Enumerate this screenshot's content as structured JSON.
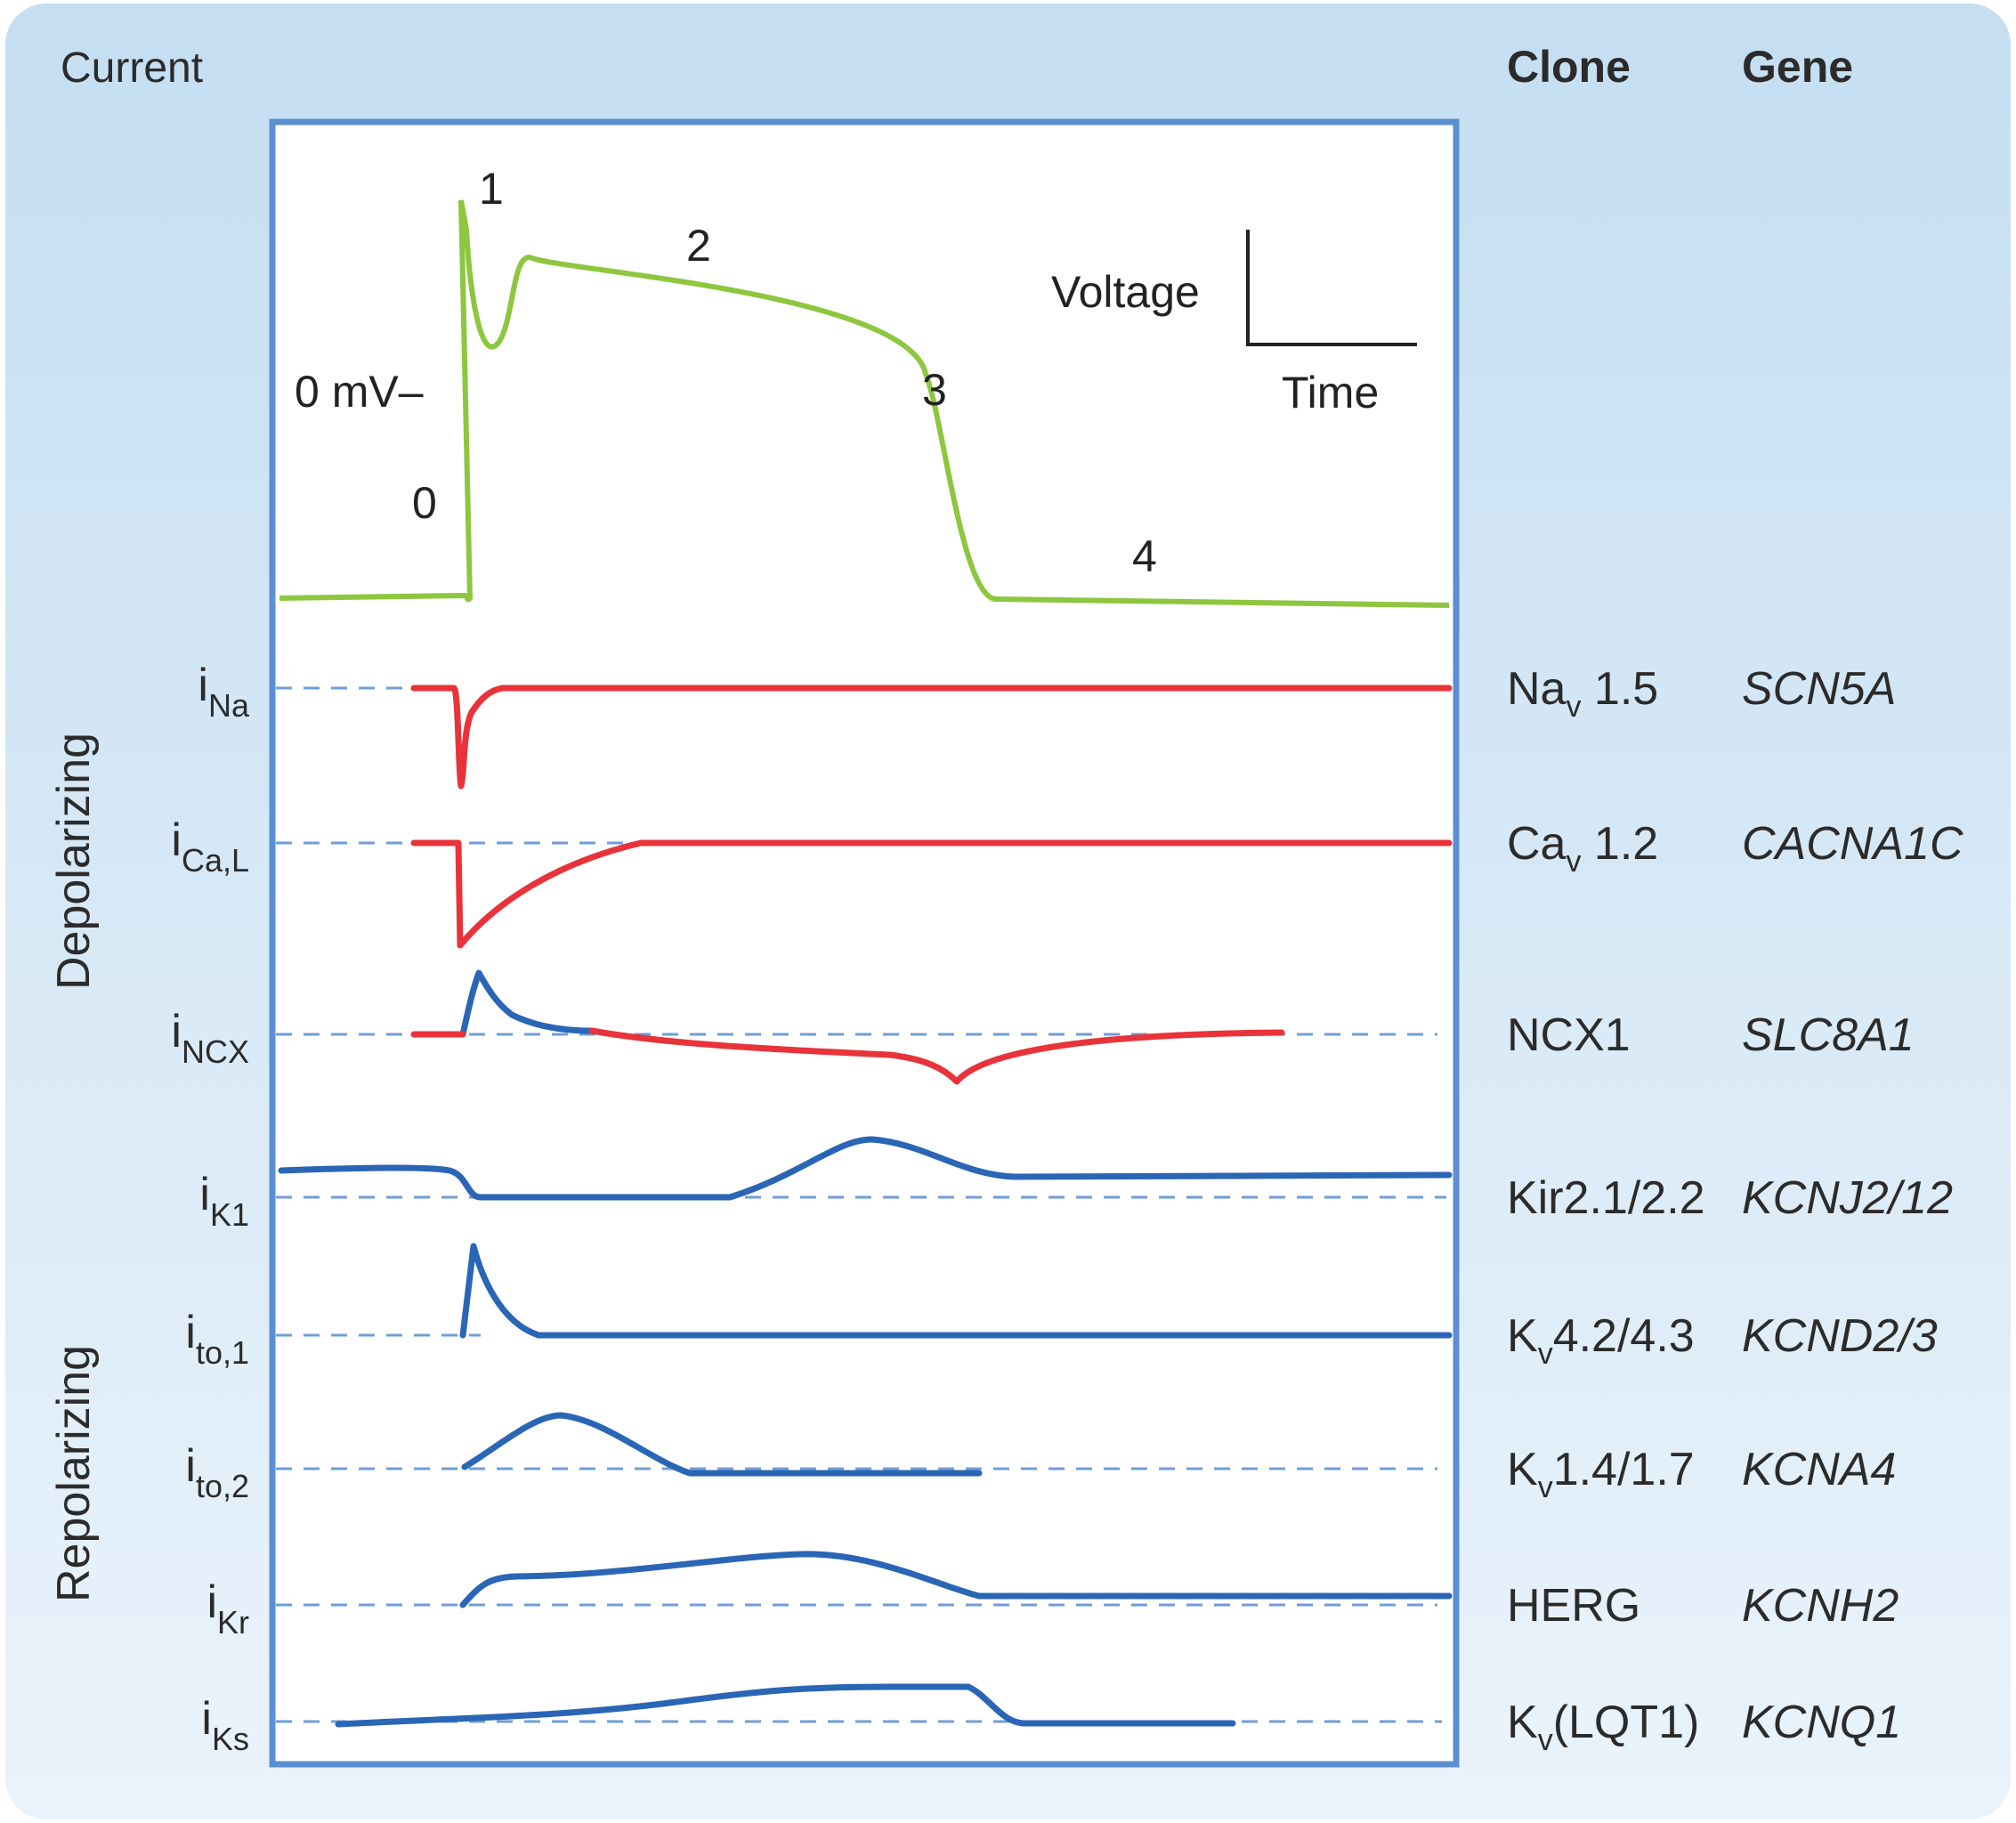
{
  "header": {
    "current": "Current",
    "clone": "Clone",
    "gene": "Gene"
  },
  "sides": {
    "depolarizing": "Depolarizing",
    "repolarizing": "Repolarizing"
  },
  "action_potential": {
    "zero_mv": "0 mV–",
    "phases": [
      "0",
      "1",
      "2",
      "3",
      "4"
    ],
    "scale_voltage": "Voltage",
    "scale_time": "Time"
  },
  "currents": [
    {
      "base": "i",
      "sub": "Na",
      "clone": "Na",
      "clone_sub": "v",
      "clone_rest": " 1.5",
      "gene": "SCN5A"
    },
    {
      "base": "i",
      "sub": "Ca,L",
      "clone": "Ca",
      "clone_sub": "v",
      "clone_rest": " 1.2",
      "gene": "CACNA1C"
    },
    {
      "base": "i",
      "sub": "NCX",
      "clone": "NCX1",
      "clone_sub": "",
      "clone_rest": "",
      "gene": "SLC8A1"
    },
    {
      "base": "i",
      "sub": "K1",
      "clone": "Kir2.1/2.2",
      "clone_sub": "",
      "clone_rest": "",
      "gene": "KCNJ2/12"
    },
    {
      "base": "i",
      "sub": "to,1",
      "clone": "K",
      "clone_sub": "v",
      "clone_rest": "4.2/4.3",
      "gene": "KCND2/3"
    },
    {
      "base": "i",
      "sub": "to,2",
      "clone": "K",
      "clone_sub": "v",
      "clone_rest": "1.4/1.7",
      "gene": "KCNA4"
    },
    {
      "base": "i",
      "sub": "Kr",
      "clone": "HERG",
      "clone_sub": "",
      "clone_rest": "",
      "gene": "KCNH2"
    },
    {
      "base": "i",
      "sub": "Ks",
      "clone": "K",
      "clone_sub": "v",
      "clone_rest": "(LQT1)",
      "gene": "KCNQ1"
    }
  ],
  "colors": {
    "background_top": "#c5def1",
    "background_bottom": "#eaf3fb",
    "frame": "#5b8fd1",
    "action_potential": "#8dc63f",
    "inward_current": "#e8333a",
    "outward_current": "#2a66b5",
    "baseline_dash": "#6f9dd8"
  }
}
